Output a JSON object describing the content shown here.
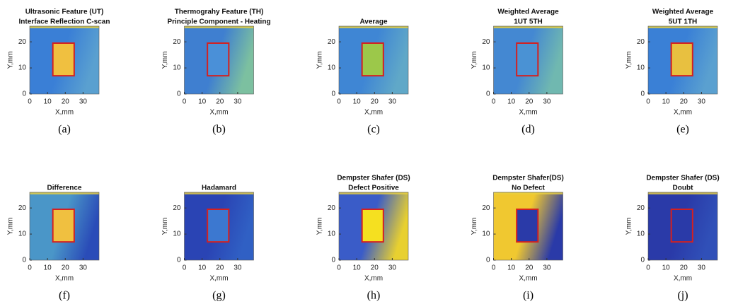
{
  "chart_data": [
    {
      "type": "heatmap",
      "title": "Ultrasonic Feature (UT)",
      "subtitle": "Interface Reflection C-scan",
      "caption": "(a)",
      "xlabel": "X,mm",
      "ylabel": "Y,mm",
      "xlim": [
        0,
        39
      ],
      "ylim": [
        0,
        26
      ],
      "xticks": [
        0,
        10,
        20,
        30
      ],
      "yticks": [
        0,
        10,
        20
      ],
      "colors": {
        "field": "#3a7fd6",
        "edge": "#5aa0d0",
        "defect": "#f0c040"
      }
    },
    {
      "type": "heatmap",
      "title": "Thermograhy Feature (TH)",
      "subtitle": "Principle Component - Heating",
      "caption": "(b)",
      "xlabel": "X,mm",
      "ylabel": "Y,mm",
      "xlim": [
        0,
        39
      ],
      "ylim": [
        0,
        26
      ],
      "xticks": [
        0,
        10,
        20,
        30
      ],
      "yticks": [
        0,
        10,
        20
      ],
      "colors": {
        "field": "#3f7fd0",
        "edge": "#7cc0a0",
        "defect": "#4a90d8"
      }
    },
    {
      "type": "heatmap",
      "title": "Average",
      "caption": "(c)",
      "xlabel": "X,mm",
      "ylabel": "Y,mm",
      "xlim": [
        0,
        39
      ],
      "ylim": [
        0,
        26
      ],
      "xticks": [
        0,
        10,
        20,
        30
      ],
      "yticks": [
        0,
        10,
        20
      ],
      "colors": {
        "field": "#3f86d4",
        "edge": "#60a8c8",
        "defect": "#9cc84a"
      }
    },
    {
      "type": "heatmap",
      "title": "Weighted Average",
      "subtitle": "1UT 5TH",
      "caption": "(d)",
      "xlabel": "X,mm",
      "ylabel": "Y,mm",
      "xlim": [
        0,
        39
      ],
      "ylim": [
        0,
        26
      ],
      "xticks": [
        0,
        10,
        20,
        30
      ],
      "yticks": [
        0,
        10,
        20
      ],
      "colors": {
        "field": "#4488d2",
        "edge": "#70b8b0",
        "defect": "#4a92d4"
      }
    },
    {
      "type": "heatmap",
      "title": "Weighted Average",
      "subtitle": "5UT 1TH",
      "caption": "(e)",
      "xlabel": "X,mm",
      "ylabel": "Y,mm",
      "xlim": [
        0,
        39
      ],
      "ylim": [
        0,
        26
      ],
      "xticks": [
        0,
        10,
        20,
        30
      ],
      "yticks": [
        0,
        10,
        20
      ],
      "colors": {
        "field": "#3a80d6",
        "edge": "#5aa0d0",
        "defect": "#e8c040"
      }
    },
    {
      "type": "heatmap",
      "title": "Difference",
      "caption": "(f)",
      "xlabel": "X,mm",
      "ylabel": "Y,mm",
      "xlim": [
        0,
        39
      ],
      "ylim": [
        0,
        26
      ],
      "xticks": [
        0,
        10,
        20,
        30
      ],
      "yticks": [
        0,
        10,
        20
      ],
      "colors": {
        "field": "#4a96c8",
        "edge": "#2a4cb8",
        "defect": "#f0c040"
      }
    },
    {
      "type": "heatmap",
      "title": "Hadamard",
      "caption": "(g)",
      "xlabel": "X,mm",
      "ylabel": "Y,mm",
      "xlim": [
        0,
        39
      ],
      "ylim": [
        0,
        26
      ],
      "xticks": [
        0,
        10,
        20,
        30
      ],
      "yticks": [
        0,
        10,
        20
      ],
      "colors": {
        "field": "#2a44b4",
        "edge": "#3060c4",
        "defect": "#3c78d0"
      }
    },
    {
      "type": "heatmap",
      "title": "Dempster Shafer (DS)",
      "subtitle": "Defect Positive",
      "caption": "(h)",
      "xlabel": "X,mm",
      "ylabel": "Y,mm",
      "xlim": [
        0,
        39
      ],
      "ylim": [
        0,
        26
      ],
      "xticks": [
        0,
        10,
        20,
        30
      ],
      "yticks": [
        0,
        10,
        20
      ],
      "colors": {
        "field": "#3a5cc8",
        "edge": "#e8d030",
        "defect": "#f5e020"
      }
    },
    {
      "type": "heatmap",
      "title": "Dempster Shafer(DS)",
      "subtitle": "No Defect",
      "caption": "(i)",
      "xlabel": "X,mm",
      "ylabel": "Y,mm",
      "xlim": [
        0,
        39
      ],
      "ylim": [
        0,
        26
      ],
      "xticks": [
        0,
        10,
        20,
        30
      ],
      "yticks": [
        0,
        10,
        20
      ],
      "colors": {
        "field": "#f0c830",
        "edge": "#2a3aa8",
        "defect": "#2a3aa8"
      }
    },
    {
      "type": "heatmap",
      "title": "Dempster Shafer (DS)",
      "subtitle": "Doubt",
      "caption": "(j)",
      "xlabel": "X,mm",
      "ylabel": "Y,mm",
      "xlim": [
        0,
        39
      ],
      "ylim": [
        0,
        26
      ],
      "xticks": [
        0,
        10,
        20,
        30
      ],
      "yticks": [
        0,
        10,
        20
      ],
      "colors": {
        "field": "#2a3aa8",
        "edge": "#3050b8",
        "defect": "#2a3aa8"
      }
    }
  ]
}
